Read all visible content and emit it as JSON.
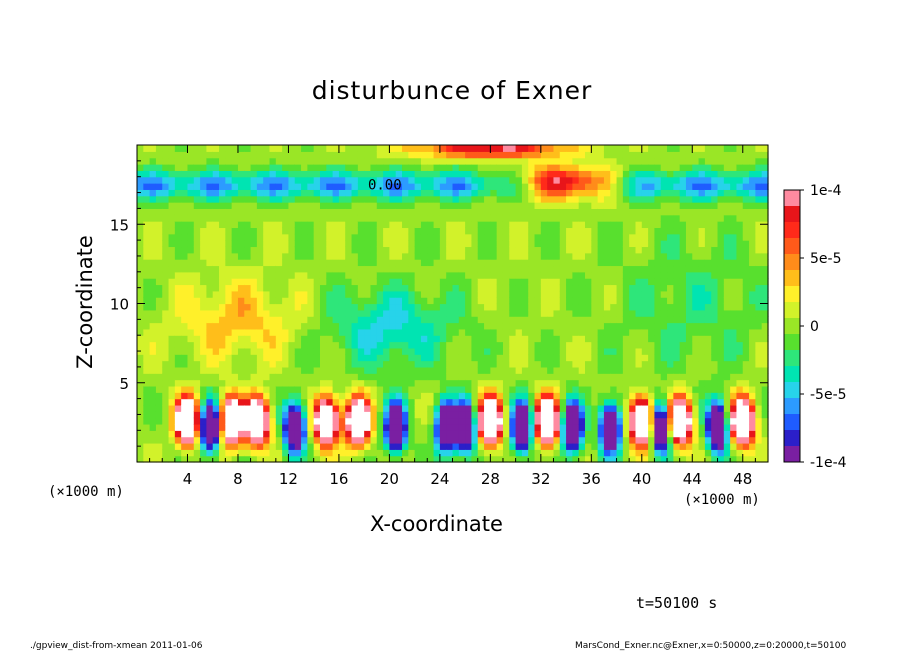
{
  "chart_data": {
    "type": "heatmap",
    "title": "disturbunce of Exner",
    "xlabel": "X-coordinate",
    "ylabel": "Z-coordinate",
    "x_unit": "(×1000 m)",
    "y_unit": "(×1000 m)",
    "xlim": [
      0,
      50
    ],
    "ylim": [
      0,
      20
    ],
    "x_ticks": [
      "4",
      "8",
      "12",
      "16",
      "20",
      "24",
      "28",
      "32",
      "36",
      "40",
      "44",
      "48"
    ],
    "y_ticks": [
      "5",
      "10",
      "15"
    ],
    "colorbar": {
      "range": [
        -0.0001,
        0.0001
      ],
      "tick_labels": [
        "1e-4",
        "5e-5",
        "0",
        "-5e-5",
        "-1e-4"
      ],
      "colors": [
        "#7a1fa2",
        "#2b1fc9",
        "#1f5cff",
        "#2c9bff",
        "#27d3ea",
        "#00e4b2",
        "#2ee67a",
        "#58e02e",
        "#9ae626",
        "#d2f22a",
        "#fff02a",
        "#ffbe1a",
        "#ff8c1a",
        "#ff5a1a",
        "#ff2a1a",
        "#e8151a",
        "#ff8aa0"
      ]
    },
    "contour_label": "0.00",
    "features": [
      {
        "kind": "positive max",
        "x": 34,
        "z": 17.6
      },
      {
        "kind": "negative band",
        "x_range": [
          0,
          50
        ],
        "z": 17.5
      },
      {
        "kind": "positive blobs near surface",
        "x": [
          4.5,
          7.5,
          9.5,
          15,
          17.5,
          28,
          32.5,
          40,
          43
        ],
        "z": 3
      }
    ]
  },
  "time_label": "t=50100 s",
  "footer_left": "./gpview_dist-from-xmean  2011-01-06",
  "footer_right": "MarsCond_Exner.nc@Exner,x=0:50000,z=0:20000,t=50100"
}
